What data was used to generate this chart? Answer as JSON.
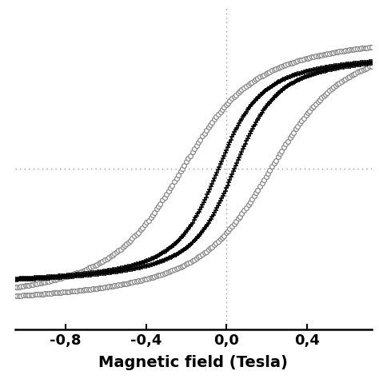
{
  "title": "",
  "xlabel": "Magnetic field (Tesla)",
  "ylabel": "",
  "xlim": [
    -1.05,
    0.72
  ],
  "ylim": [
    -1.18,
    1.18
  ],
  "xticks": [
    -0.8,
    -0.4,
    0.0,
    0.4
  ],
  "xticklabels": [
    "-0,8",
    "-0,4",
    "0,0",
    "0,4"
  ],
  "background_color": "#ffffff",
  "curve1_color": "#000000",
  "curve2_color": "#888888",
  "grid_color": "#999999",
  "Ms1": 0.88,
  "Ms2": 1.05,
  "a1": 12.0,
  "a2": 7.0,
  "hw1": 0.04,
  "hw2": 0.22
}
